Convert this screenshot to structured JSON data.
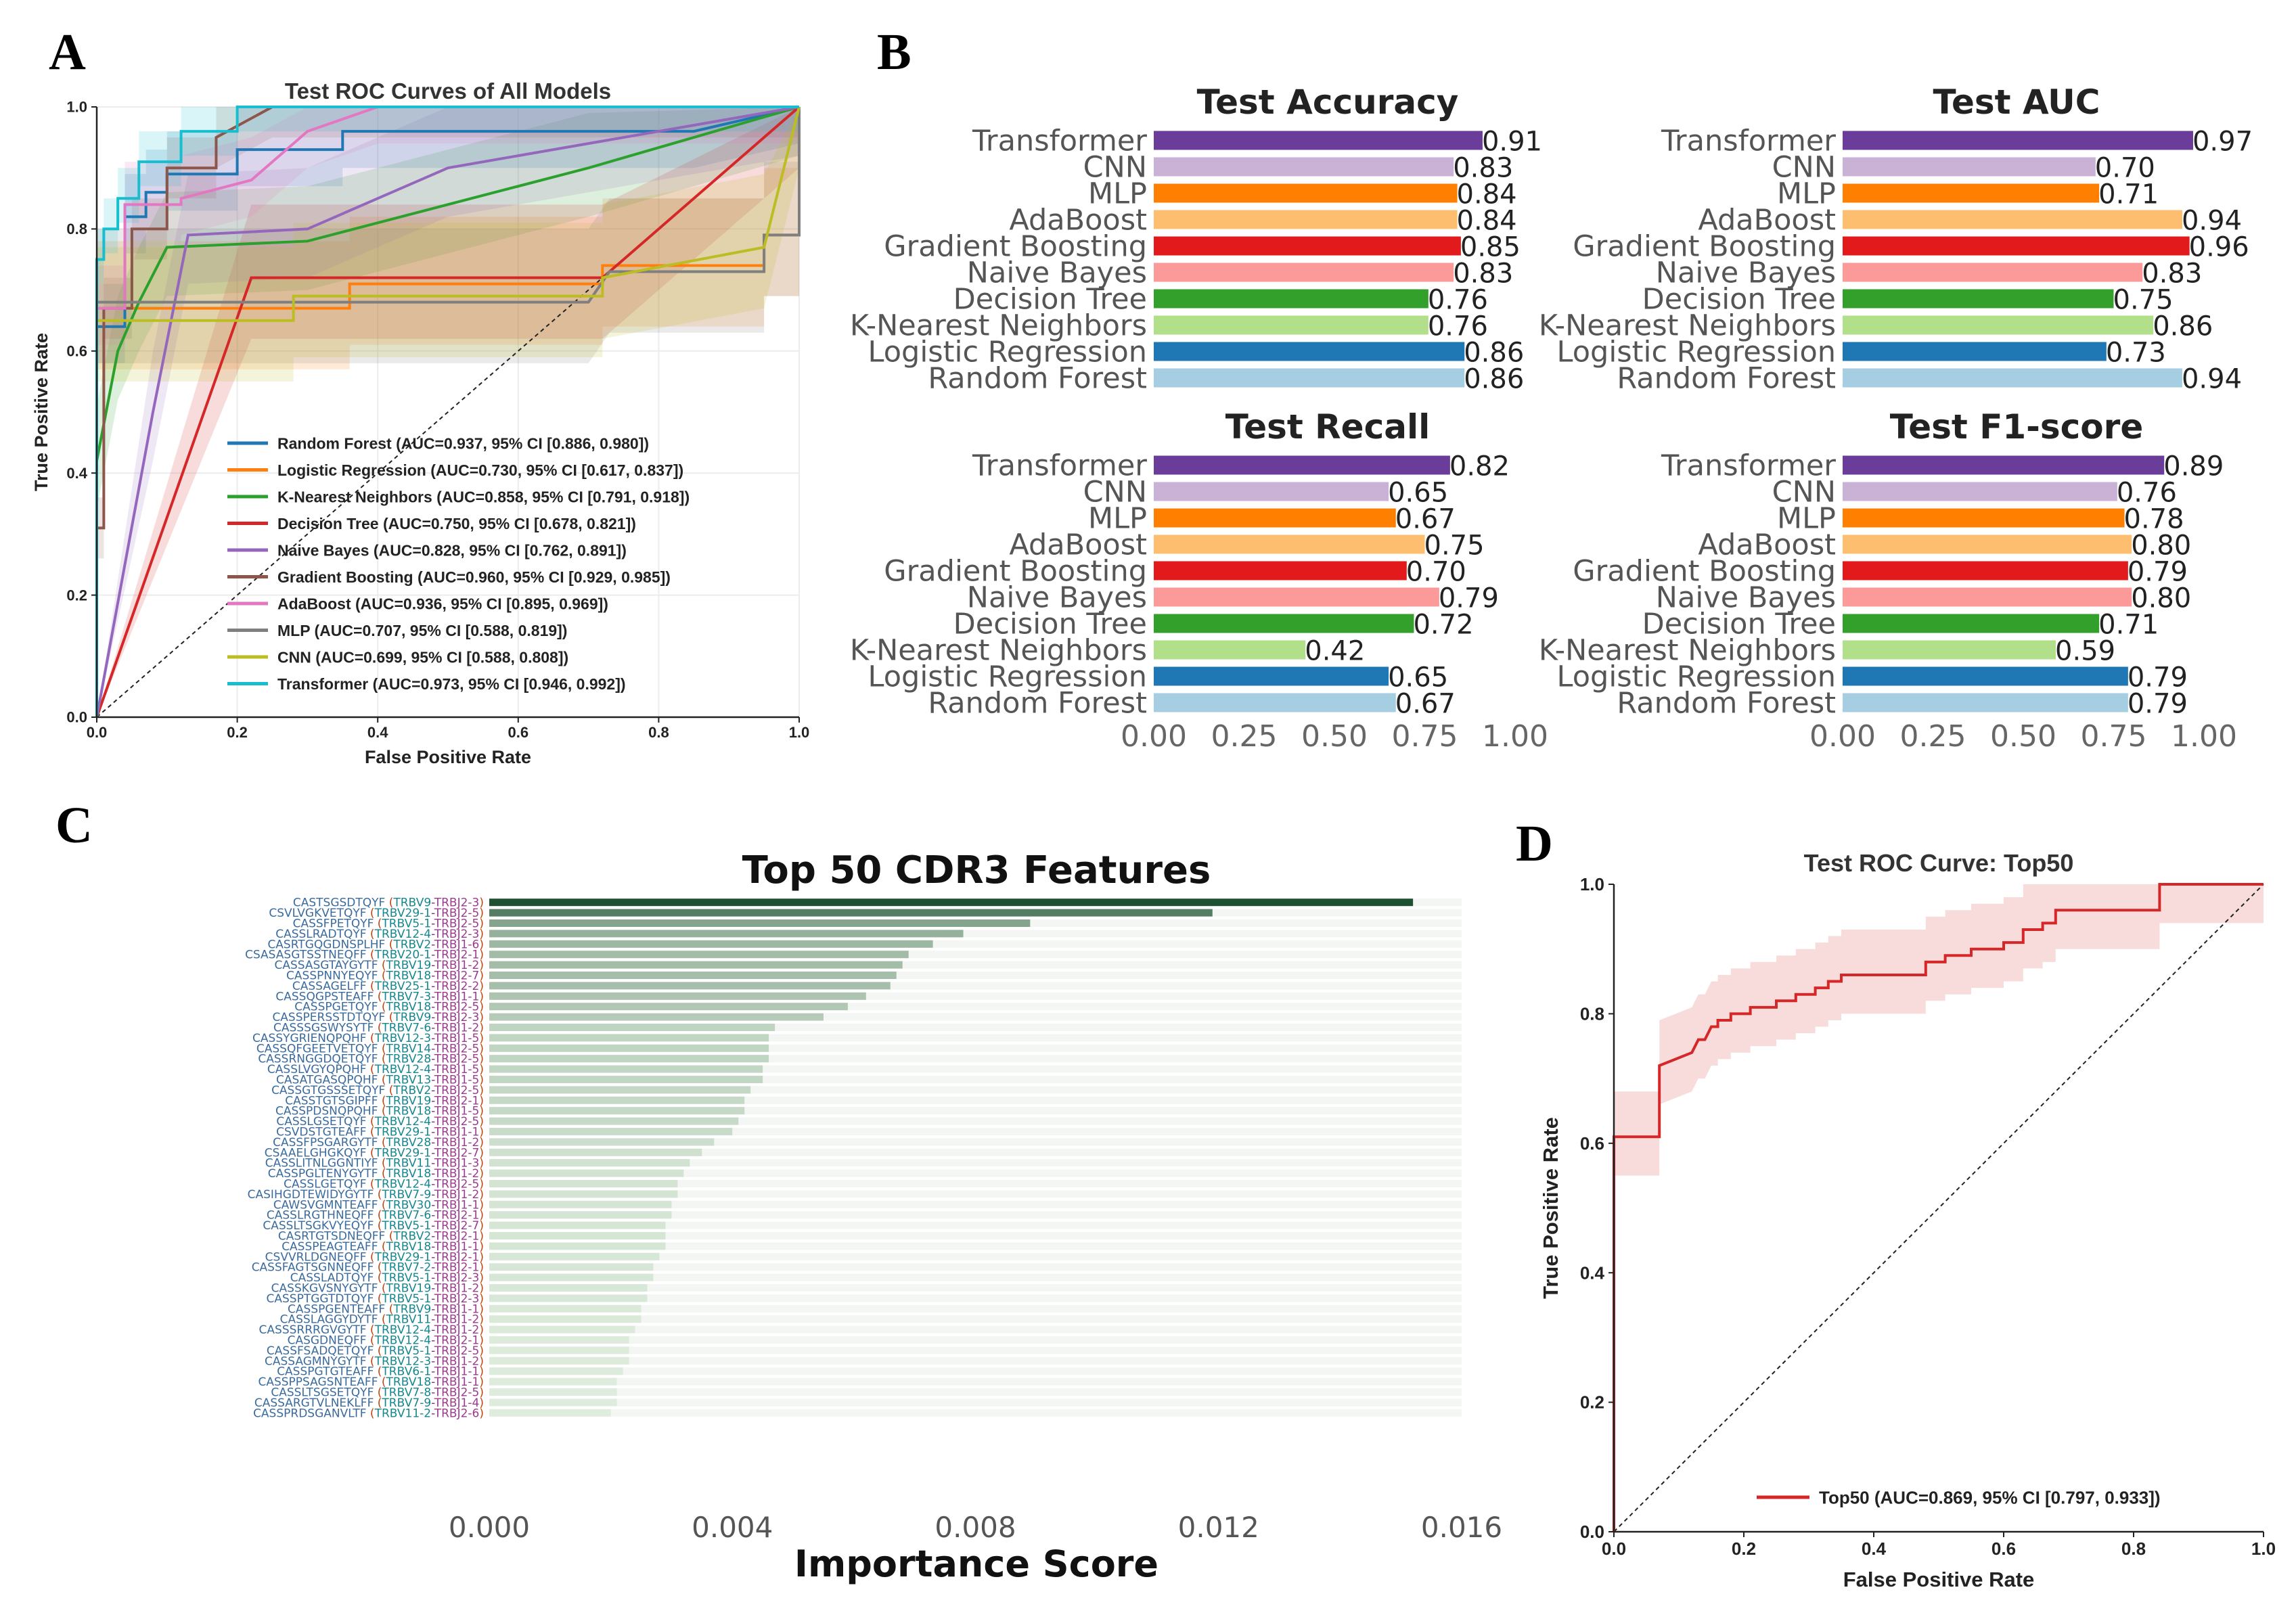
{
  "panel_letters": [
    "A",
    "B",
    "C",
    "D"
  ],
  "chart_data": [
    {
      "id": "A",
      "type": "line",
      "title": "Test ROC Curves of All Models",
      "xlabel": "False Positive Rate",
      "ylabel": "True Positive Rate",
      "xlim": [
        0,
        1
      ],
      "ylim": [
        0,
        1
      ],
      "xticks": [
        "0.0",
        "0.2",
        "0.4",
        "0.6",
        "0.8",
        "1.0"
      ],
      "yticks": [
        "0.0",
        "0.2",
        "0.4",
        "0.6",
        "0.8",
        "1.0"
      ],
      "grid": true,
      "legend_position": "lower-right",
      "series": [
        {
          "name": "Random Forest (AUC=0.937, 95% CI [0.886, 0.980])",
          "color": "#1f77b4",
          "x": [
            0,
            0,
            0.04,
            0.04,
            0.07,
            0.07,
            0.1,
            0.1,
            0.2,
            0.2,
            0.35,
            0.35,
            0.85,
            1.0
          ],
          "y": [
            0,
            0.64,
            0.64,
            0.82,
            0.82,
            0.86,
            0.86,
            0.89,
            0.89,
            0.93,
            0.93,
            0.96,
            0.96,
            1.0
          ],
          "band": [
            0.07,
            0.06
          ]
        },
        {
          "name": "Logistic Regression (AUC=0.730, 95% CI [0.617, 0.837])",
          "color": "#ff7f0e",
          "x": [
            0,
            0,
            0.36,
            0.36,
            0.72,
            0.72,
            0.95,
            0.95,
            1.0,
            1.0
          ],
          "y": [
            0,
            0.67,
            0.67,
            0.71,
            0.71,
            0.74,
            0.74,
            0.79,
            0.79,
            1.0
          ],
          "band": [
            0.11,
            0.1
          ]
        },
        {
          "name": "K-Nearest Neighbors (AUC=0.858, 95% CI [0.791, 0.918])",
          "color": "#2ca02c",
          "x": [
            0,
            0,
            0.03,
            0.06,
            0.1,
            0.3,
            0.7,
            1.0
          ],
          "y": [
            0,
            0.42,
            0.6,
            0.68,
            0.77,
            0.78,
            0.9,
            1.0
          ],
          "band": [
            0.09,
            0.08
          ]
        },
        {
          "name": "Decision Tree (AUC=0.750, 95% CI [0.678, 0.821])",
          "color": "#d62728",
          "x": [
            0,
            0.22,
            0.4,
            0.72,
            1.0
          ],
          "y": [
            0,
            0.72,
            0.72,
            0.72,
            1.0
          ],
          "band": [
            0.12,
            0.1
          ]
        },
        {
          "name": "Naive Bayes (AUC=0.828, 95% CI [0.762, 0.891])",
          "color": "#9467bd",
          "x": [
            0,
            0.08,
            0.13,
            0.3,
            0.5,
            1.0
          ],
          "y": [
            0,
            0.5,
            0.79,
            0.8,
            0.9,
            1.0
          ],
          "band": [
            0.1,
            0.08
          ]
        },
        {
          "name": "Gradient Boosting (AUC=0.960, 95% CI [0.929, 0.985])",
          "color": "#8c564b",
          "x": [
            0,
            0,
            0.01,
            0.01,
            0.05,
            0.05,
            0.1,
            0.1,
            0.17,
            0.17,
            0.25,
            1.0
          ],
          "y": [
            0,
            0.31,
            0.31,
            0.67,
            0.67,
            0.8,
            0.8,
            0.9,
            0.9,
            0.95,
            1.0,
            1.0
          ],
          "band": [
            0.05,
            0.05
          ]
        },
        {
          "name": "AdaBoost (AUC=0.936, 95% CI [0.895, 0.969])",
          "color": "#e377c2",
          "x": [
            0,
            0,
            0.04,
            0.04,
            0.12,
            0.12,
            0.22,
            0.3,
            0.4,
            1.0
          ],
          "y": [
            0,
            0.67,
            0.67,
            0.84,
            0.84,
            0.85,
            0.88,
            0.96,
            1.0,
            1.0
          ],
          "band": [
            0.07,
            0.06
          ]
        },
        {
          "name": "MLP (AUC=0.707, 95% CI [0.588, 0.819])",
          "color": "#7f7f7f",
          "x": [
            0,
            0,
            0.4,
            0.7,
            0.73,
            0.95,
            0.95,
            1.0,
            1.0
          ],
          "y": [
            0,
            0.68,
            0.68,
            0.68,
            0.73,
            0.73,
            0.79,
            0.79,
            1.0
          ],
          "band": [
            0.12,
            0.1
          ]
        },
        {
          "name": "CNN (AUC=0.699, 95% CI [0.588, 0.808])",
          "color": "#bcbd22",
          "x": [
            0,
            0,
            0.28,
            0.28,
            0.72,
            0.72,
            0.95,
            1.0
          ],
          "y": [
            0,
            0.65,
            0.65,
            0.69,
            0.69,
            0.72,
            0.77,
            1.0
          ],
          "band": [
            0.12,
            0.1
          ]
        },
        {
          "name": "Transformer (AUC=0.973, 95% CI [0.946, 0.992])",
          "color": "#17becf",
          "x": [
            0,
            0,
            0.01,
            0.01,
            0.03,
            0.03,
            0.06,
            0.06,
            0.12,
            0.12,
            0.2,
            0.2,
            1.0
          ],
          "y": [
            0,
            0.75,
            0.75,
            0.8,
            0.8,
            0.85,
            0.85,
            0.91,
            0.91,
            0.96,
            0.96,
            1.0,
            1.0
          ],
          "band": [
            0.05,
            0.04
          ]
        }
      ]
    },
    {
      "id": "B",
      "type": "bar",
      "orientation": "horizontal",
      "categories": [
        "Transformer",
        "CNN",
        "MLP",
        "AdaBoost",
        "Gradient Boosting",
        "Naive Bayes",
        "Decision Tree",
        "K-Nearest Neighbors",
        "Logistic Regression",
        "Random Forest"
      ],
      "colors": [
        "#6a3d9a",
        "#cab2d6",
        "#ff7f00",
        "#fdbf6f",
        "#e31a1c",
        "#fb9a99",
        "#33a02c",
        "#b2df8a",
        "#1f78b4",
        "#a6cee3"
      ],
      "xlim": [
        0,
        1
      ],
      "xticks": [
        "0.00",
        "0.25",
        "0.50",
        "0.75",
        "1.00"
      ],
      "subplots": [
        {
          "title": "Test Accuracy",
          "values": [
            0.91,
            0.83,
            0.84,
            0.84,
            0.85,
            0.83,
            0.76,
            0.76,
            0.86,
            0.86
          ],
          "labels": [
            "0.91",
            "0.83",
            "0.84",
            "0.84",
            "0.85",
            "0.83",
            "0.76",
            "0.76",
            "0.86",
            "0.86"
          ]
        },
        {
          "title": "Test AUC",
          "values": [
            0.97,
            0.7,
            0.71,
            0.94,
            0.96,
            0.83,
            0.75,
            0.86,
            0.73,
            0.94
          ],
          "labels": [
            "0.97",
            "0.70",
            "0.71",
            "0.94",
            "0.96",
            "0.83",
            "0.75",
            "0.86",
            "0.73",
            "0.94"
          ]
        },
        {
          "title": "Test Recall",
          "values": [
            0.82,
            0.65,
            0.67,
            0.75,
            0.7,
            0.79,
            0.72,
            0.42,
            0.65,
            0.67
          ],
          "labels": [
            "0.82",
            "0.65",
            "0.67",
            "0.75",
            "0.70",
            "0.79",
            "0.72",
            "0.42",
            "0.65",
            "0.67"
          ]
        },
        {
          "title": "Test F1-score",
          "values": [
            0.89,
            0.76,
            0.78,
            0.8,
            0.79,
            0.8,
            0.71,
            0.59,
            0.79,
            0.79
          ],
          "labels": [
            "0.89",
            "0.76",
            "0.78",
            "0.80",
            "0.79",
            "0.80",
            "0.71",
            "0.59",
            "0.79",
            "0.79"
          ]
        }
      ]
    },
    {
      "id": "C",
      "type": "bar",
      "orientation": "horizontal",
      "title": "Top 50 CDR3 Features",
      "xlabel": "Importance Score",
      "xlim": [
        0,
        0.016
      ],
      "xticks": [
        "0.000",
        "0.004",
        "0.008",
        "0.012",
        "0.016"
      ],
      "features": [
        {
          "cdr3": "CASTSGSDTQYF",
          "v": "TRBV9",
          "j": "TRBJ2-3",
          "value": 0.0152
        },
        {
          "cdr3": "CSVLVGKVETQYF",
          "v": "TRBV29-1",
          "j": "TRBJ2-5",
          "value": 0.0119
        },
        {
          "cdr3": "CASSFPETQYF",
          "v": "TRBV5-1",
          "j": "TRBJ2-5",
          "value": 0.0089
        },
        {
          "cdr3": "CASSLRADTQYF",
          "v": "TRBV12-4",
          "j": "TRBJ2-3",
          "value": 0.0078
        },
        {
          "cdr3": "CASRTGQGDNSPLHF",
          "v": "TRBV2",
          "j": "TRBJ1-6",
          "value": 0.0073
        },
        {
          "cdr3": "CSASASGTSSTNEQFF",
          "v": "TRBV20-1",
          "j": "TRBJ2-1",
          "value": 0.0069
        },
        {
          "cdr3": "CASSASGTAYGYTF",
          "v": "TRBV19",
          "j": "TRBJ1-2",
          "value": 0.0068
        },
        {
          "cdr3": "CASSPNNYEQYF",
          "v": "TRBV18",
          "j": "TRBJ2-7",
          "value": 0.0067
        },
        {
          "cdr3": "CASSAGELFF",
          "v": "TRBV25-1",
          "j": "TRBJ2-2",
          "value": 0.0066
        },
        {
          "cdr3": "CASSQGPSTEAFF",
          "v": "TRBV7-3",
          "j": "TRBJ1-1",
          "value": 0.0062
        },
        {
          "cdr3": "CASSPGETQYF",
          "v": "TRBV18",
          "j": "TRBJ2-5",
          "value": 0.0059
        },
        {
          "cdr3": "CASSPERSSTDTQYF",
          "v": "TRBV9",
          "j": "TRBJ2-3",
          "value": 0.0055
        },
        {
          "cdr3": "CASSSGSWYSYTF",
          "v": "TRBV7-6",
          "j": "TRBJ1-2",
          "value": 0.0047
        },
        {
          "cdr3": "CASSYGRIENQPQHF",
          "v": "TRBV12-3",
          "j": "TRBJ1-5",
          "value": 0.0046
        },
        {
          "cdr3": "CASSQFGEETVETQYF",
          "v": "TRBV14",
          "j": "TRBJ2-5",
          "value": 0.0046
        },
        {
          "cdr3": "CASSRNGGDQETQYF",
          "v": "TRBV28",
          "j": "TRBJ2-5",
          "value": 0.0046
        },
        {
          "cdr3": "CASSLVGYQPQHF",
          "v": "TRBV12-4",
          "j": "TRBJ1-5",
          "value": 0.0045
        },
        {
          "cdr3": "CASATGASQPQHF",
          "v": "TRBV13",
          "j": "TRBJ1-5",
          "value": 0.0045
        },
        {
          "cdr3": "CASSGTGSSSETQYF",
          "v": "TRBV2",
          "j": "TRBJ2-5",
          "value": 0.0043
        },
        {
          "cdr3": "CASSTGTSGIPFF",
          "v": "TRBV19",
          "j": "TRBJ2-1",
          "value": 0.0042
        },
        {
          "cdr3": "CASSPDSNQPQHF",
          "v": "TRBV18",
          "j": "TRBJ1-5",
          "value": 0.0042
        },
        {
          "cdr3": "CASSLGSETQYF",
          "v": "TRBV12-4",
          "j": "TRBJ2-5",
          "value": 0.0041
        },
        {
          "cdr3": "CSVDSTGTEAFF",
          "v": "TRBV29-1",
          "j": "TRBJ1-1",
          "value": 0.004
        },
        {
          "cdr3": "CASSFPSGARGYTF",
          "v": "TRBV28",
          "j": "TRBJ1-2",
          "value": 0.0037
        },
        {
          "cdr3": "CSAAELGHGKQYF",
          "v": "TRBV29-1",
          "j": "TRBJ2-7",
          "value": 0.0035
        },
        {
          "cdr3": "CASSLITNLGGNTIYF",
          "v": "TRBV11",
          "j": "TRBJ1-3",
          "value": 0.0033
        },
        {
          "cdr3": "CASSPGLTENYGYTF",
          "v": "TRBV18",
          "j": "TRBJ1-2",
          "value": 0.0032
        },
        {
          "cdr3": "CASSLGETQYF",
          "v": "TRBV12-4",
          "j": "TRBJ2-5",
          "value": 0.0031
        },
        {
          "cdr3": "CASIHGDTEWIDYGYTF",
          "v": "TRBV7-9",
          "j": "TRBJ1-2",
          "value": 0.0031
        },
        {
          "cdr3": "CAWSVGMNTEAFF",
          "v": "TRBV30",
          "j": "TRBJ1-1",
          "value": 0.003
        },
        {
          "cdr3": "CASSLRGTHNEQFF",
          "v": "TRBV7-6",
          "j": "TRBJ2-1",
          "value": 0.003
        },
        {
          "cdr3": "CASSLTSGKVYEQYF",
          "v": "TRBV5-1",
          "j": "TRBJ2-7",
          "value": 0.0029
        },
        {
          "cdr3": "CASRTGTSDNEQFF",
          "v": "TRBV2",
          "j": "TRBJ2-1",
          "value": 0.0029
        },
        {
          "cdr3": "CASSPEAGTEAFF",
          "v": "TRBV18",
          "j": "TRBJ1-1",
          "value": 0.0029
        },
        {
          "cdr3": "CSVVRLDGNEQFF",
          "v": "TRBV29-1",
          "j": "TRBJ2-1",
          "value": 0.0028
        },
        {
          "cdr3": "CASSFAGTSGNNEQFF",
          "v": "TRBV7-2",
          "j": "TRBJ2-1",
          "value": 0.0027
        },
        {
          "cdr3": "CASSLADTQYF",
          "v": "TRBV5-1",
          "j": "TRBJ2-3",
          "value": 0.0027
        },
        {
          "cdr3": "CASSKGVSNYGYTF",
          "v": "TRBV19",
          "j": "TRBJ1-2",
          "value": 0.0026
        },
        {
          "cdr3": "CASSPTGGTDTQYF",
          "v": "TRBV5-1",
          "j": "TRBJ2-3",
          "value": 0.0026
        },
        {
          "cdr3": "CASSPGENTEAFF",
          "v": "TRBV9",
          "j": "TRBJ1-1",
          "value": 0.0025
        },
        {
          "cdr3": "CASSLAGGYDYTF",
          "v": "TRBV11",
          "j": "TRBJ1-2",
          "value": 0.0025
        },
        {
          "cdr3": "CASSSRRRGVGYTF",
          "v": "TRBV12-4",
          "j": "TRBJ1-2",
          "value": 0.0024
        },
        {
          "cdr3": "CASGDNEQFF",
          "v": "TRBV12-4",
          "j": "TRBJ2-1",
          "value": 0.0023
        },
        {
          "cdr3": "CASSFSADQETQYF",
          "v": "TRBV5-1",
          "j": "TRBJ2-5",
          "value": 0.0023
        },
        {
          "cdr3": "CASSAGMNYGYTF",
          "v": "TRBV12-3",
          "j": "TRBJ1-2",
          "value": 0.0023
        },
        {
          "cdr3": "CASSPGTGTEAFF",
          "v": "TRBV6-1",
          "j": "TRBJ1-1",
          "value": 0.0022
        },
        {
          "cdr3": "CASSPPSAGSNTEAFF",
          "v": "TRBV18",
          "j": "TRBJ1-1",
          "value": 0.0021
        },
        {
          "cdr3": "CASSLTSGSETQYF",
          "v": "TRBV7-8",
          "j": "TRBJ2-5",
          "value": 0.0021
        },
        {
          "cdr3": "CASSARGTVLNEKLFF",
          "v": "TRBV7-9",
          "j": "TRBJ1-4",
          "value": 0.0021
        },
        {
          "cdr3": "CASSPRDSGANVLTF",
          "v": "TRBV11-2",
          "j": "TRBJ2-6",
          "value": 0.002
        }
      ]
    },
    {
      "id": "D",
      "type": "line",
      "title": "Test ROC Curve: Top50",
      "xlabel": "False Positive Rate",
      "ylabel": "True Positive Rate",
      "xlim": [
        0,
        1
      ],
      "ylim": [
        0,
        1
      ],
      "xticks": [
        "0.0",
        "0.2",
        "0.4",
        "0.6",
        "0.8",
        "1.0"
      ],
      "yticks": [
        "0.0",
        "0.2",
        "0.4",
        "0.6",
        "0.8",
        "1.0"
      ],
      "legend_position": "lower-right",
      "series": [
        {
          "name": "Top50 (AUC=0.869, 95% CI [0.797, 0.933])",
          "color": "#d62728",
          "x": [
            0,
            0,
            0.07,
            0.07,
            0.12,
            0.13,
            0.14,
            0.15,
            0.16,
            0.16,
            0.18,
            0.18,
            0.21,
            0.21,
            0.25,
            0.25,
            0.28,
            0.28,
            0.31,
            0.31,
            0.33,
            0.33,
            0.35,
            0.35,
            0.38,
            0.38,
            0.48,
            0.48,
            0.51,
            0.51,
            0.55,
            0.55,
            0.6,
            0.6,
            0.63,
            0.63,
            0.66,
            0.66,
            0.68,
            0.68,
            0.84,
            0.84,
            1.0
          ],
          "y": [
            0,
            0.61,
            0.61,
            0.72,
            0.74,
            0.76,
            0.76,
            0.78,
            0.78,
            0.79,
            0.79,
            0.8,
            0.8,
            0.81,
            0.81,
            0.82,
            0.82,
            0.83,
            0.83,
            0.84,
            0.84,
            0.85,
            0.85,
            0.86,
            0.86,
            0.86,
            0.86,
            0.88,
            0.88,
            0.89,
            0.89,
            0.9,
            0.9,
            0.91,
            0.91,
            0.93,
            0.93,
            0.94,
            0.94,
            0.96,
            0.96,
            1.0,
            1.0
          ],
          "band": [
            0.07,
            0.06
          ]
        }
      ]
    }
  ]
}
